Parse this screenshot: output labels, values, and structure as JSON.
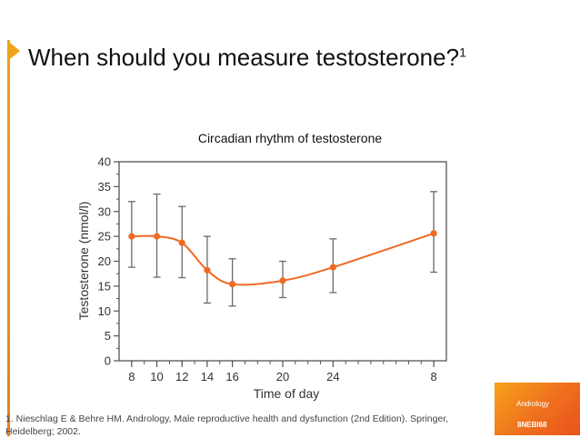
{
  "slide": {
    "title": "When should you measure testosterone?",
    "title_ref": "1",
    "footnote": "1. Nieschlag E & Behre HM. Andrology, Male reproductive health and dysfunction (2nd Edition). Springer, Heidelberg; 2002.",
    "logo_text": "Andrology",
    "code": "8NEBI68",
    "accent_color": "#f0a21a"
  },
  "chart_data": {
    "type": "line",
    "title": "Circadian rhythm of testosterone",
    "xlabel": "Time of day",
    "ylabel": "Testosterone (nmol/l)",
    "x_ticks": [
      "8",
      "10",
      "12",
      "14",
      "16",
      "20",
      "24",
      "8"
    ],
    "x_hours": [
      8,
      10,
      12,
      14,
      16,
      20,
      24,
      32
    ],
    "x_range_hours": [
      7,
      33
    ],
    "y_range": [
      0,
      40
    ],
    "y_ticks": [
      0,
      5,
      10,
      15,
      20,
      25,
      30,
      35,
      40
    ],
    "grid": false,
    "series": [
      {
        "values": [
          25,
          25,
          23.7,
          18.2,
          15.4,
          16.1,
          18.8,
          25.6
        ],
        "err_low": [
          18.8,
          16.8,
          16.7,
          11.6,
          11,
          12.7,
          13.7,
          17.8
        ],
        "err_high": [
          32,
          33.5,
          31,
          25,
          20.5,
          20,
          24.5,
          34
        ],
        "color": "#ef6a25"
      }
    ]
  }
}
